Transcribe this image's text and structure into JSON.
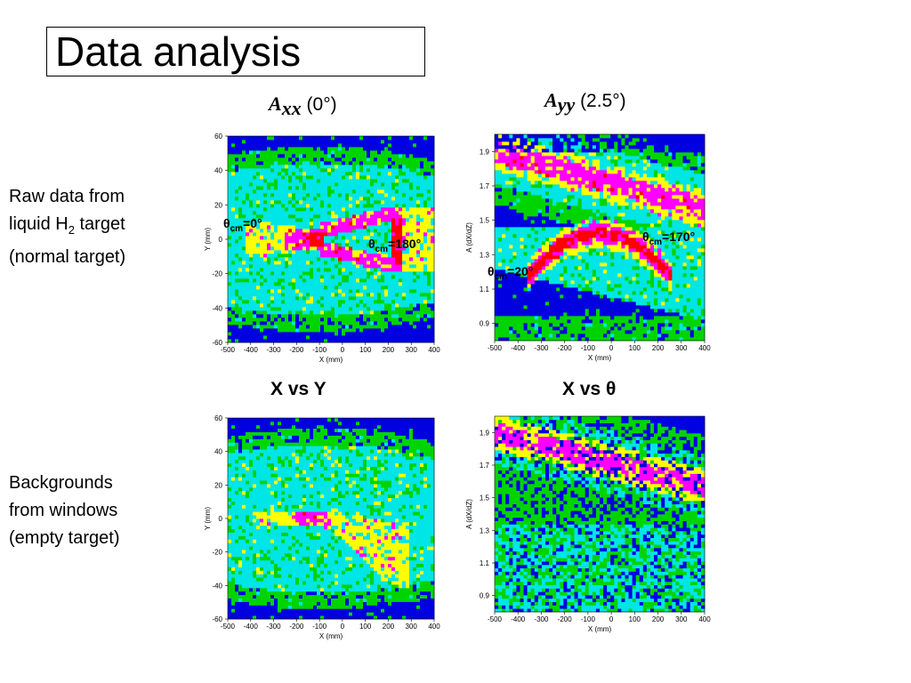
{
  "slide": {
    "title": "Data analysis",
    "col_heads": [
      {
        "symbol": "A",
        "sub": "xx",
        "angle": "(0°)"
      },
      {
        "symbol": "A",
        "sub": "yy",
        "angle": "(2.5°)"
      }
    ],
    "row_labels": [
      {
        "line1": "Raw data from",
        "line2_pre": "liquid H",
        "line2_sub": "2",
        "line2_post": " target",
        "line3": "(normal target)"
      },
      {
        "line1": "Backgrounds",
        "line2": "from windows",
        "line3": "(empty target)"
      }
    ],
    "captions": {
      "xy": "X vs Y",
      "xtheta": "X vs θ"
    },
    "annotations": [
      {
        "pre": "θ",
        "sub": "cm",
        "post": "=0°"
      },
      {
        "pre": "θ",
        "sub": "cm",
        "post": "=180°"
      },
      {
        "pre": "θ",
        "sub": "cm",
        "post": "=170°"
      },
      {
        "pre": "θ",
        "sub": "cm",
        "post": "=20°"
      }
    ]
  },
  "colors": {
    "background_fill": "#00e5e5",
    "edge": "#00d400",
    "outer": "#0000e0",
    "yellow": "#ffff00",
    "magenta": "#ff00ff",
    "red": "#ff0000"
  },
  "chart_data": [
    {
      "id": "raw-xy",
      "type": "heatmap",
      "xlabel": "X (mm)",
      "ylabel": "Y (mm)",
      "xticks": [
        "-500",
        "-400",
        "-300",
        "-200",
        "-100",
        "0",
        "100",
        "200",
        "300",
        "400"
      ],
      "yticks": [
        "60",
        "40",
        "20",
        "0",
        "-20",
        "-40",
        "-60"
      ],
      "xlim": [
        -500,
        400
      ],
      "ylim": [
        -60,
        60
      ]
    },
    {
      "id": "raw-xtheta",
      "type": "heatmap",
      "xlabel": "X (mm)",
      "ylabel": "A (dX/dZ)",
      "xticks": [
        "-500",
        "-400",
        "-300",
        "-200",
        "-100",
        "0",
        "100",
        "200",
        "300",
        "400"
      ],
      "yticks": [
        "1.9",
        "1.7",
        "1.5",
        "1.3",
        "1.1",
        "0.9"
      ],
      "xlim": [
        -500,
        400
      ],
      "ylim": [
        0.8,
        2.0
      ]
    },
    {
      "id": "bg-xy",
      "type": "heatmap",
      "xlabel": "X (mm)",
      "ylabel": "Y (mm)",
      "xticks": [
        "-500",
        "-400",
        "-300",
        "-200",
        "-100",
        "0",
        "100",
        "200",
        "300",
        "400"
      ],
      "yticks": [
        "60",
        "40",
        "20",
        "0",
        "-20",
        "-40",
        "-60"
      ],
      "xlim": [
        -500,
        400
      ],
      "ylim": [
        -60,
        60
      ]
    },
    {
      "id": "bg-xtheta",
      "type": "heatmap",
      "xlabel": "X (mm)",
      "ylabel": "A (dX/dZ)",
      "xticks": [
        "-500",
        "-400",
        "-300",
        "-200",
        "-100",
        "0",
        "100",
        "200",
        "300",
        "400"
      ],
      "yticks": [
        "1.9",
        "1.7",
        "1.5",
        "1.3",
        "1.1",
        "0.9"
      ],
      "xlim": [
        -500,
        400
      ],
      "ylim": [
        0.8,
        2.0
      ]
    }
  ]
}
